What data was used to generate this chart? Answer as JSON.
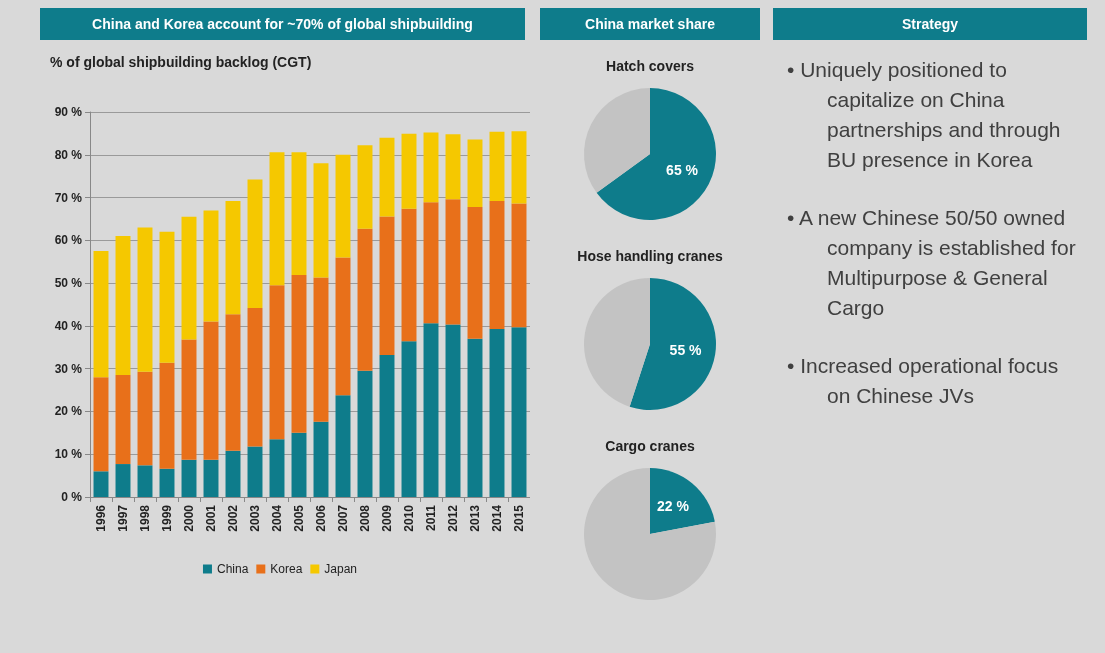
{
  "chart_data": [
    {
      "type": "bar",
      "title": "China and Korea account for ~70% of global shipbuilding",
      "subtitle": "% of global shipbuilding backlog (CGT)",
      "categories": [
        "1996",
        "1997",
        "1998",
        "1999",
        "2000",
        "2001",
        "2002",
        "2003",
        "2004",
        "2005",
        "2006",
        "2007",
        "2008",
        "2009",
        "2010",
        "2011",
        "2012",
        "2013",
        "2014",
        "2015"
      ],
      "series": [
        {
          "name": "China",
          "color": "#0e7c8b",
          "values": [
            6,
            7.7,
            7.4,
            6.6,
            8.7,
            8.7,
            10.8,
            11.8,
            13.5,
            15,
            17.6,
            23.8,
            29.5,
            33.2,
            36.4,
            40.6,
            40.3,
            37,
            39.3,
            39.7
          ]
        },
        {
          "name": "Korea",
          "color": "#e8701a",
          "values": [
            22,
            20.8,
            21.9,
            24.8,
            28.1,
            32.3,
            31.9,
            32.4,
            36,
            36.9,
            33.7,
            32.2,
            33.2,
            32.4,
            31,
            28.3,
            29.3,
            30.8,
            29.9,
            28.9
          ]
        },
        {
          "name": "Japan",
          "color": "#f5c800",
          "values": [
            29.5,
            32.5,
            33.7,
            30.6,
            28.7,
            26,
            26.5,
            30,
            31.1,
            28.7,
            26.7,
            24,
            19.5,
            18.4,
            17.5,
            16.3,
            15.2,
            15.8,
            16.2,
            16.9
          ]
        }
      ],
      "stacked": true,
      "ylim": [
        0,
        90
      ],
      "yticks": [
        {
          "value": 0,
          "label": "0 %"
        },
        {
          "value": 10,
          "label": "10 %"
        },
        {
          "value": 20,
          "label": "20 %"
        },
        {
          "value": 30,
          "label": "30 %"
        },
        {
          "value": 40,
          "label": "40 %"
        },
        {
          "value": 50,
          "label": "50 %"
        },
        {
          "value": 60,
          "label": "60 %"
        },
        {
          "value": 70,
          "label": "70 %"
        },
        {
          "value": 80,
          "label": "80 %"
        },
        {
          "value": 90,
          "label": "90 %"
        }
      ],
      "grid": "y",
      "legend": "bottom"
    },
    {
      "type": "pie",
      "title": "China market share",
      "subtitle": "Hatch covers",
      "categories": [
        null,
        null
      ],
      "values": [
        65,
        35
      ],
      "colors": [
        "#0e7c8b",
        "#c3c3c3"
      ],
      "value_labels": [
        "65 %",
        null
      ]
    },
    {
      "type": "pie",
      "title": "Hose handling cranes",
      "categories": [
        null,
        null
      ],
      "values": [
        55,
        45
      ],
      "colors": [
        "#0e7c8b",
        "#c3c3c3"
      ],
      "value_labels": [
        "55 %",
        null
      ]
    },
    {
      "type": "pie",
      "title": "Cargo cranes",
      "categories": [
        null,
        null
      ],
      "values": [
        22,
        78
      ],
      "colors": [
        "#0e7c8b",
        "#c3c3c3"
      ],
      "value_labels": [
        "22 %",
        null
      ]
    },
    {
      "type": "other",
      "title": "Strategy",
      "annotations": [
        "• Uniquely positioned to capitalize on China partnerships and through  BU presence in Korea",
        "• A new Chinese 50/50 owned company is established for Multipurpose & General Cargo",
        "• Increased operational focus on Chinese JVs"
      ]
    }
  ]
}
